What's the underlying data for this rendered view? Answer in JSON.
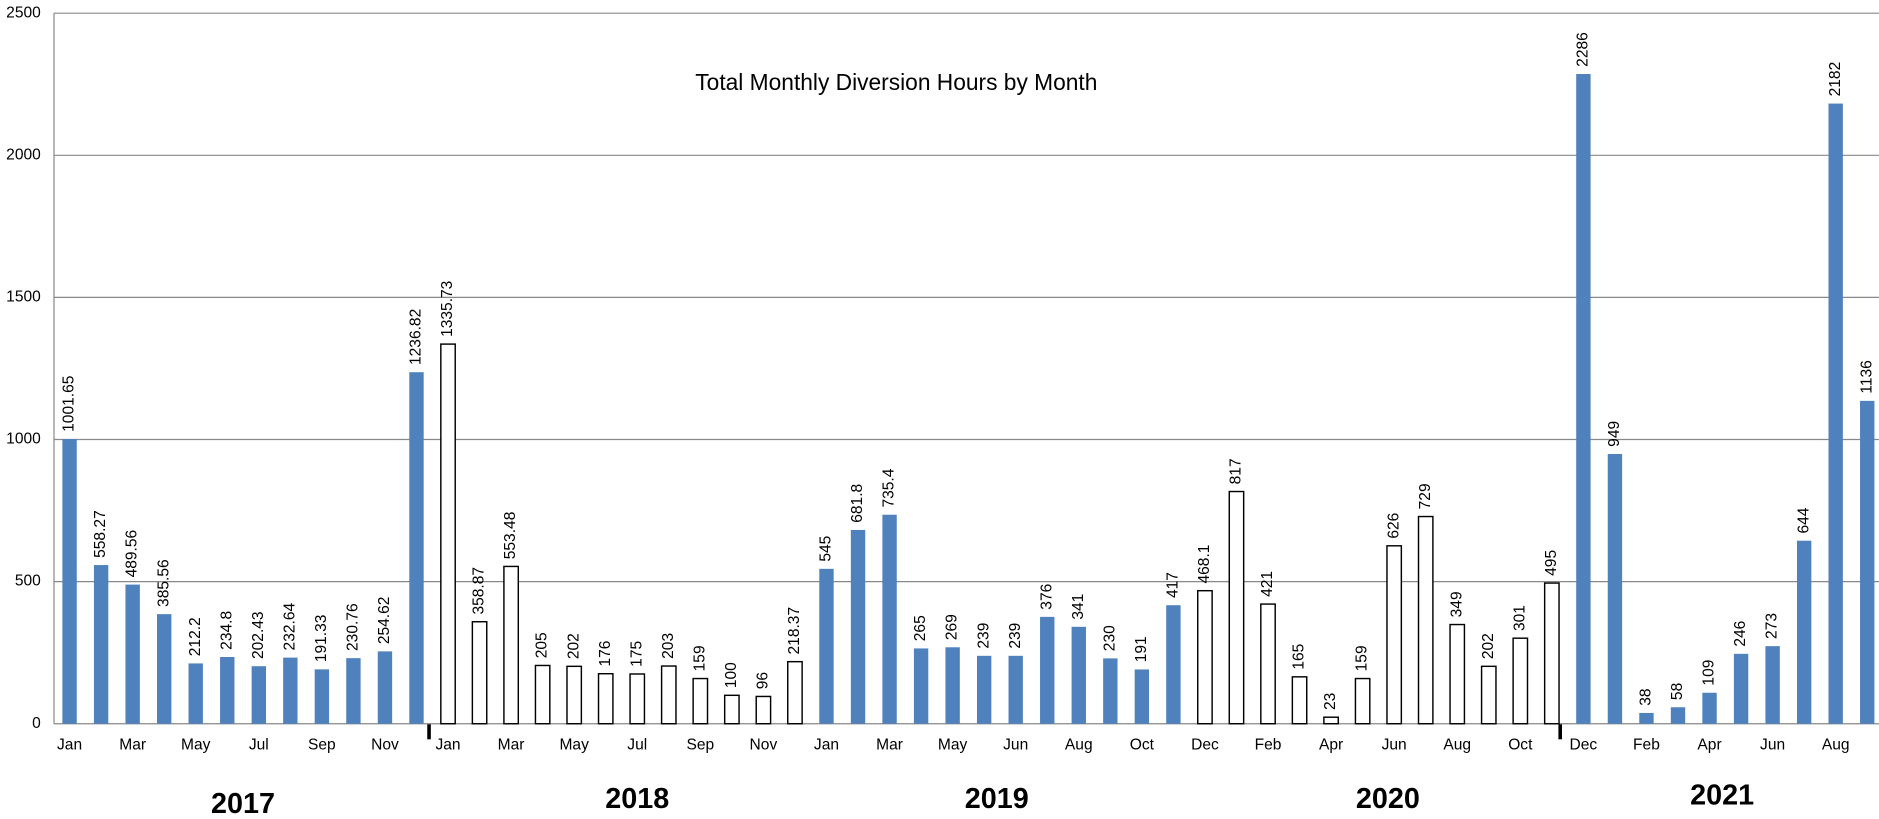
{
  "chart_data": {
    "type": "bar",
    "title": "Total Monthly Diversion Hours by Month",
    "categories": [
      "Jan",
      null,
      "Mar",
      null,
      "May",
      null,
      "Jul",
      null,
      "Sep",
      null,
      "Nov",
      null,
      "Jan",
      null,
      "Mar",
      null,
      "May",
      null,
      "Jul",
      null,
      "Sep",
      null,
      "Nov",
      null,
      "Jan",
      null,
      "Mar",
      null,
      "May",
      null,
      "Jun",
      null,
      "Aug",
      null,
      "Oct",
      null,
      "Dec",
      null,
      "Feb",
      null,
      "Apr",
      null,
      "Jun",
      null,
      "Aug",
      null,
      "Oct",
      null,
      "Dec",
      null,
      "Feb",
      null,
      "Apr",
      null,
      "Jun",
      null,
      "Aug",
      null
    ],
    "values": [
      1001.65,
      558.27,
      489.56,
      385.56,
      212.2,
      234.8,
      202.43,
      232.64,
      191.33,
      230.76,
      254.62,
      1236.82,
      1335.73,
      358.87,
      553.48,
      205,
      202,
      176,
      175,
      203,
      159,
      100,
      96,
      218.37,
      545,
      681.8,
      735.4,
      265,
      269,
      239,
      239,
      376,
      341,
      230,
      191,
      417,
      468.1,
      817,
      421,
      165,
      23,
      159,
      626,
      729,
      349,
      202,
      301,
      495,
      2286,
      949,
      38,
      58,
      109,
      246,
      273,
      644,
      2182,
      1136
    ],
    "colors": [
      "#4f81bd",
      "#4f81bd",
      "#4f81bd",
      "#4f81bd",
      "#4f81bd",
      "#4f81bd",
      "#4f81bd",
      "#4f81bd",
      "#4f81bd",
      "#4f81bd",
      "#4f81bd",
      "#4f81bd",
      "#ffffff",
      "#ffffff",
      "#ffffff",
      "#ffffff",
      "#ffffff",
      "#ffffff",
      "#ffffff",
      "#ffffff",
      "#ffffff",
      "#ffffff",
      "#ffffff",
      "#ffffff",
      "#4f81bd",
      "#4f81bd",
      "#4f81bd",
      "#4f81bd",
      "#4f81bd",
      "#4f81bd",
      "#4f81bd",
      "#4f81bd",
      "#4f81bd",
      "#4f81bd",
      "#4f81bd",
      "#4f81bd",
      "#ffffff",
      "#ffffff",
      "#ffffff",
      "#ffffff",
      "#ffffff",
      "#ffffff",
      "#ffffff",
      "#ffffff",
      "#ffffff",
      "#ffffff",
      "#ffffff",
      "#ffffff",
      "#4f81bd",
      "#4f81bd",
      "#4f81bd",
      "#4f81bd",
      "#4f81bd",
      "#4f81bd",
      "#4f81bd",
      "#4f81bd",
      "#4f81bd",
      "#4f81bd"
    ],
    "year_labels": [
      "2017",
      "2018",
      "2019",
      "2020",
      "2021"
    ],
    "ylim": [
      0,
      2500
    ],
    "yticks": [
      0,
      500,
      1000,
      1500,
      2000,
      2500
    ],
    "grid": true
  }
}
